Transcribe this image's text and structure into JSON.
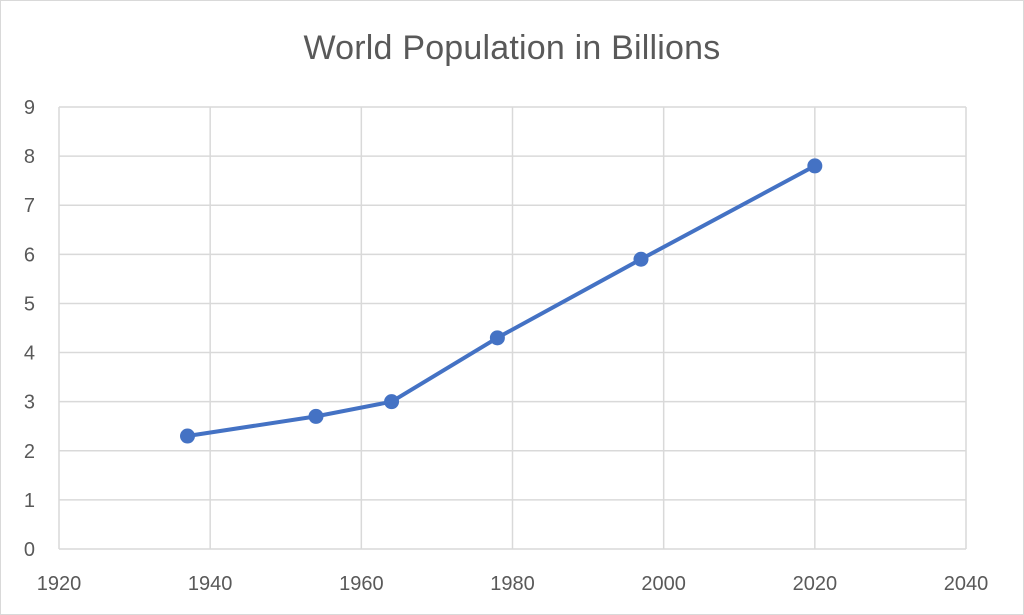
{
  "chart_data": {
    "type": "scatter",
    "title": "World Population in Billions",
    "xlabel": "",
    "ylabel": "",
    "xlim": [
      1920,
      2040
    ],
    "ylim": [
      0,
      9
    ],
    "x_ticks": [
      1920,
      1940,
      1960,
      1980,
      2000,
      2020,
      2040
    ],
    "y_ticks": [
      0,
      1,
      2,
      3,
      4,
      5,
      6,
      7,
      8,
      9
    ],
    "grid": true,
    "legend": "none",
    "line_color": "#4472c4",
    "grid_color": "#d9d9d9",
    "series": [
      {
        "x": [
          1937,
          1954,
          1964,
          1978,
          1997,
          2020
        ],
        "y": [
          2.3,
          2.7,
          3.0,
          4.3,
          5.9,
          7.8
        ]
      }
    ]
  }
}
